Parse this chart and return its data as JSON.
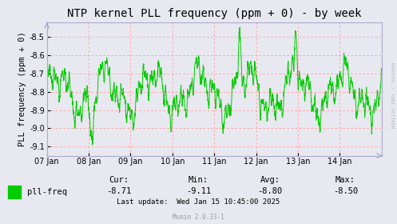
{
  "title": "NTP kernel PLL frequency (ppm + 0) - by week",
  "ylabel": "PLL frequency (ppm + 0)",
  "ylim": [
    -9.15,
    -8.42
  ],
  "yticks": [
    -9.1,
    -9.0,
    -8.9,
    -8.8,
    -8.7,
    -8.6,
    -8.5
  ],
  "background_color": "#e8e8f0",
  "plot_bg_color": "#e8e8f0",
  "line_color": "#00cc00",
  "grid_color": "#ff9999",
  "legend_label": "pll-freq",
  "legend_color": "#00cc00",
  "cur_val": "-8.71",
  "min_val": "-9.11",
  "avg_val": "-8.80",
  "max_val": "-8.50",
  "last_update": "Last update:  Wed Jan 15 10:45:00 2025",
  "munin_label": "Munin 2.0.33-1",
  "rrdtool_label": "RRDTOOL / TOBI OETIKER",
  "xticklabels": [
    "07 Jan",
    "08 Jan",
    "09 Jan",
    "10 Jan",
    "11 Jan",
    "12 Jan",
    "13 Jan",
    "14 Jan"
  ],
  "title_fontsize": 10,
  "axis_fontsize": 7.5,
  "tick_fontsize": 7.0,
  "stats_fontsize": 7.5,
  "footer_fontsize": 6.5
}
